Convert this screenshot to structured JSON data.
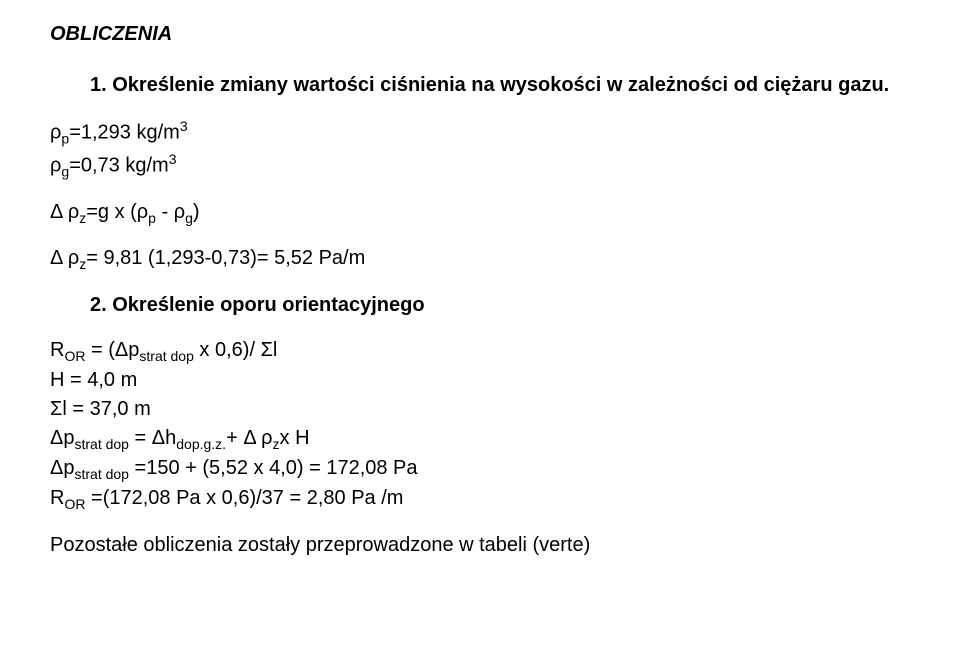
{
  "style": {
    "text_color": "#000000",
    "background_color": "#ffffff",
    "font_family": "Arial",
    "base_fontsize_pt": 15,
    "title_bold": true,
    "title_italic": true,
    "line_height": 1.45
  },
  "title": "OBLICZENIA",
  "item1": {
    "number": "1.",
    "text": "Określenie zmiany wartości ciśnienia   na wysokości w zależności od ciężaru gazu."
  },
  "rho_block": {
    "line1_prefix": "ρ",
    "line1_sub": "p",
    "line1_rest": "=1,293 kg/m",
    "line1_sup": "3",
    "line2_prefix": "ρ",
    "line2_sub": "g",
    "line2_rest": "=0,73 kg/m",
    "line2_sup": "3"
  },
  "delta1": {
    "prefix": "Δ ρ",
    "sub1": "z",
    "mid": "=g x (ρ",
    "sub2": "p",
    "mid2": " - ρ",
    "sub3": "g",
    "end": ")"
  },
  "delta2": {
    "prefix": "Δ ρ",
    "sub": "z",
    "rest": "= 9,81 (1,293-0,73)= 5,52 Pa/m"
  },
  "item2": {
    "number": "2.",
    "text": "Określenie oporu orientacyjnego"
  },
  "calc": {
    "l1_a": "R",
    "l1_sub1": "OR",
    "l1_b": " = (Δp",
    "l1_sub2": "strat dop",
    "l1_c": " x 0,6)/ Σl",
    "l2": "H = 4,0 m",
    "l3": "Σl = 37,0 m",
    "l4_a": "Δp",
    "l4_sub1": "strat dop",
    "l4_b": " = Δh",
    "l4_sub2": "dop.g.z.",
    "l4_c": "+ Δ ρ",
    "l4_sub3": "z",
    "l4_d": "x H",
    "l5_a": "Δp",
    "l5_sub": "strat dop",
    "l5_b": " =150 + (5,52 x 4,0) = 172,08 Pa",
    "l6_a": "R",
    "l6_sub": "OR",
    "l6_b": " =(172,08 Pa x 0,6)/37 = 2,80 Pa /m"
  },
  "footer": "Pozostałe obliczenia zostały przeprowadzone w tabeli (verte)"
}
